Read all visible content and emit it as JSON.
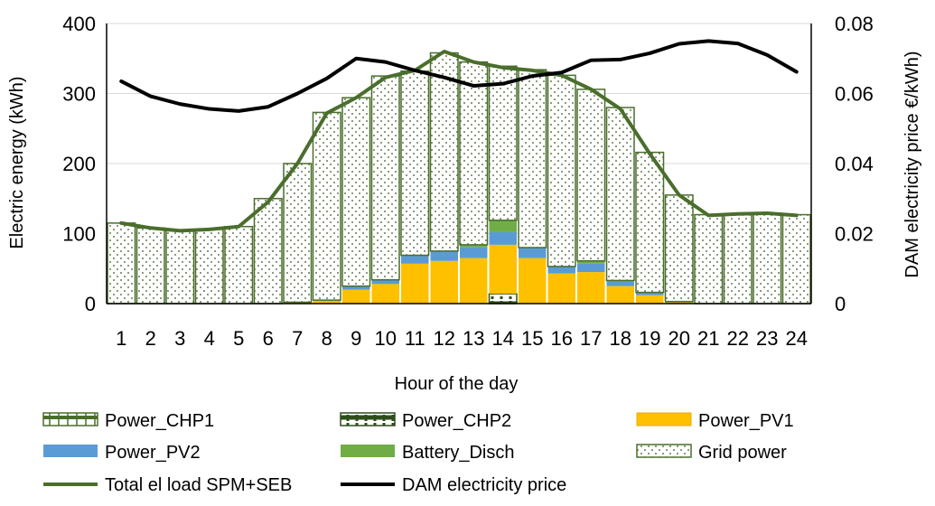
{
  "chart_data": {
    "type": "bar",
    "stacked": true,
    "categories": [
      "1",
      "2",
      "3",
      "4",
      "5",
      "6",
      "7",
      "8",
      "9",
      "10",
      "11",
      "12",
      "13",
      "14",
      "15",
      "16",
      "17",
      "18",
      "19",
      "20",
      "21",
      "22",
      "23",
      "24"
    ],
    "xlabel": "Hour of the day",
    "ylabel": "Electric energy (kWh)",
    "y2label": "DAM electricity price €/kWh)",
    "ylim": [
      0,
      400
    ],
    "y2lim": [
      0,
      0.08
    ],
    "yticks": [
      "0",
      "100",
      "200",
      "300",
      "400"
    ],
    "y2ticks": [
      "0",
      "0.02",
      "0.04",
      "0.06",
      "0.08"
    ],
    "grid": true,
    "colors": {
      "chp_border": "#4a6e2c",
      "pv1": "#ffc000",
      "pv2": "#5b9bd5",
      "battery": "#70ad47",
      "grid_dots": "#375623",
      "total_load": "#4a6e2c",
      "price": "#000000",
      "gridline": "#d9d9d9"
    },
    "series": [
      {
        "name": "Power_CHP1",
        "kind": "bar",
        "pattern": "chp1",
        "values": [
          0,
          0,
          0,
          0,
          0,
          0,
          0,
          0,
          0,
          0,
          0,
          0,
          0,
          2,
          0,
          0,
          0,
          0,
          0,
          0,
          0,
          0,
          0,
          0
        ]
      },
      {
        "name": "Power_CHP2",
        "kind": "bar",
        "pattern": "chp2",
        "values": [
          0,
          0,
          0,
          0,
          0,
          0,
          0,
          0,
          0,
          0,
          0,
          0,
          0,
          12,
          0,
          0,
          0,
          0,
          0,
          0,
          0,
          0,
          0,
          0
        ]
      },
      {
        "name": "Power_PV1",
        "kind": "bar",
        "pattern": "solid-pv1",
        "values": [
          0,
          0,
          0,
          0,
          0,
          0,
          2,
          4,
          20,
          28,
          57,
          61,
          65,
          70,
          65,
          43,
          45,
          25,
          12,
          2,
          0,
          0,
          0,
          0
        ]
      },
      {
        "name": "Power_PV2",
        "kind": "bar",
        "pattern": "solid-pv2",
        "values": [
          0,
          0,
          0,
          0,
          0,
          0,
          0,
          1,
          5,
          6,
          12,
          14,
          16,
          18,
          15,
          10,
          12,
          8,
          4,
          1,
          0,
          0,
          0,
          0
        ]
      },
      {
        "name": "Battery_Disch",
        "kind": "bar",
        "pattern": "solid-battery",
        "values": [
          0,
          0,
          0,
          0,
          0,
          0,
          0,
          0,
          0,
          0,
          0,
          0,
          3,
          17,
          0,
          0,
          4,
          0,
          0,
          0,
          0,
          0,
          0,
          0
        ]
      },
      {
        "name": "Grid power",
        "kind": "bar",
        "pattern": "dots",
        "values": [
          115,
          108,
          104,
          106,
          110,
          150,
          198,
          268,
          269,
          291,
          263,
          283,
          261,
          220,
          254,
          273,
          245,
          247,
          200,
          152,
          127,
          128,
          129,
          127
        ]
      },
      {
        "name": "Total el load SPM+SEB",
        "kind": "line",
        "axis": "left",
        "values": [
          115,
          108,
          104,
          106,
          110,
          145,
          200,
          272,
          294,
          323,
          333,
          360,
          345,
          337,
          333,
          326,
          306,
          278,
          214,
          155,
          126,
          128,
          129,
          126
        ]
      },
      {
        "name": "DAM electricity price",
        "kind": "line",
        "axis": "right",
        "values": [
          0.0635,
          0.0592,
          0.057,
          0.0556,
          0.055,
          0.0562,
          0.06,
          0.0643,
          0.07,
          0.069,
          0.0666,
          0.0646,
          0.0622,
          0.0628,
          0.065,
          0.066,
          0.0695,
          0.0697,
          0.0715,
          0.0742,
          0.075,
          0.0743,
          0.071,
          0.0662
        ]
      }
    ]
  }
}
